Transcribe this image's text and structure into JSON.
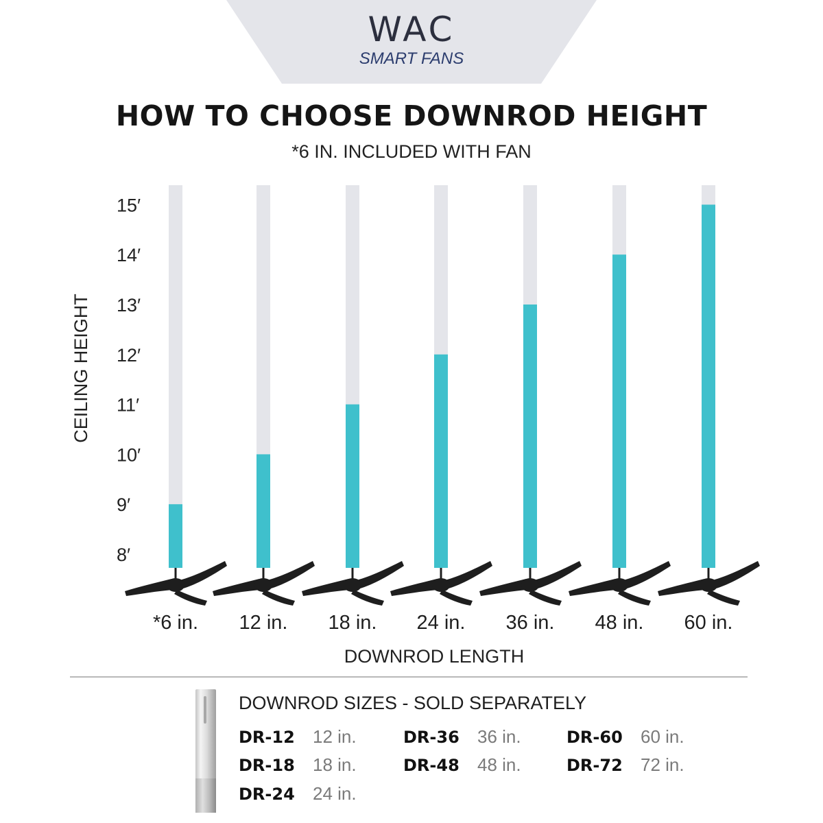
{
  "logo": {
    "brand": "WAC",
    "sub": "SMART FANS"
  },
  "title": "HOW TO CHOOSE DOWNROD HEIGHT",
  "subtitle": "*6 IN. INCLUDED WITH FAN",
  "colors": {
    "fill": "#3fc0cc",
    "track": "#e4e5ea",
    "banner": "#e4e5ea",
    "fan": "#1e1e1e"
  },
  "chart_data": {
    "type": "bar",
    "ylabel": "CEILING HEIGHT",
    "xlabel": "DOWNROD LENGTH",
    "y_ticks": [
      "8′",
      "9′",
      "10′",
      "11′",
      "12′",
      "13′",
      "14′",
      "15′"
    ],
    "ylim": [
      8,
      15.3
    ],
    "categories": [
      "*6 in.",
      "12 in.",
      "18 in.",
      "24 in.",
      "36 in.",
      "48 in.",
      "60 in."
    ],
    "values": [
      9,
      10,
      11,
      12,
      13,
      14,
      15
    ],
    "grid": false
  },
  "sizes": {
    "title": "DOWNROD SIZES - SOLD SEPARATELY",
    "items": [
      {
        "code": "DR-12",
        "length": "12 in."
      },
      {
        "code": "DR-18",
        "length": "18 in."
      },
      {
        "code": "DR-24",
        "length": "24 in."
      },
      {
        "code": "DR-36",
        "length": "36 in."
      },
      {
        "code": "DR-48",
        "length": "48 in."
      },
      {
        "code": "DR-60",
        "length": "60 in."
      },
      {
        "code": "DR-72",
        "length": "72 in."
      }
    ]
  }
}
